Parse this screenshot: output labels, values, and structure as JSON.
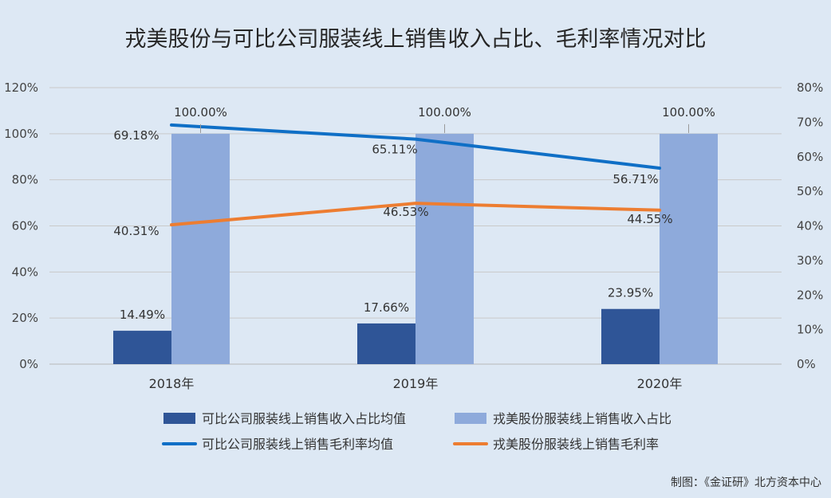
{
  "chart_data": {
    "type": "bar",
    "title": "戎美股份与可比公司服装线上销售收入占比、毛利率情况对比",
    "categories": [
      "2018年",
      "2019年",
      "2020年"
    ],
    "left_axis": {
      "ticks": [
        "0%",
        "20%",
        "40%",
        "60%",
        "80%",
        "100%",
        "120%"
      ],
      "ylim": [
        0,
        120
      ]
    },
    "right_axis": {
      "ticks": [
        "0%",
        "10%",
        "20%",
        "30%",
        "40%",
        "50%",
        "60%",
        "70%",
        "80%"
      ],
      "ylim": [
        0,
        80
      ]
    },
    "grid": true,
    "legend_position": "bottom",
    "bar_series": [
      {
        "name": "可比公司服装线上销售收入占比均值",
        "values": [
          14.49,
          17.66,
          23.95
        ],
        "labels": [
          "14.49%",
          "17.66%",
          "23.95%"
        ],
        "color": "#2f5597",
        "axis": "left"
      },
      {
        "name": "戎美股份服装线上销售收入占比",
        "values": [
          100.0,
          100.0,
          100.0
        ],
        "labels": [
          "100.00%",
          "100.00%",
          "100.00%"
        ],
        "color": "#8eaadb",
        "axis": "left"
      }
    ],
    "line_series": [
      {
        "name": "可比公司服装线上销售毛利率均值",
        "values": [
          69.18,
          65.11,
          56.71
        ],
        "labels": [
          "69.18%",
          "65.11%",
          "56.71%"
        ],
        "color": "#0f6fc6",
        "axis": "right"
      },
      {
        "name": "戎美股份服装线上销售毛利率",
        "values": [
          40.31,
          46.53,
          44.55
        ],
        "labels": [
          "40.31%",
          "46.53%",
          "44.55%"
        ],
        "color": "#ed7d31",
        "axis": "right"
      }
    ]
  },
  "credit": "制图：《金证研》北方资本中心"
}
